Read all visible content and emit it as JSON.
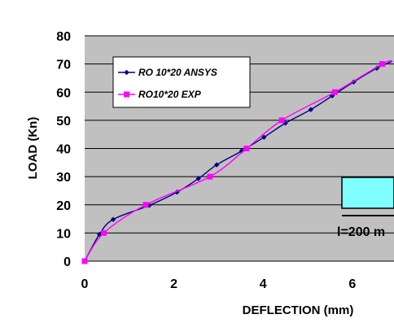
{
  "chart_data": {
    "type": "line",
    "xlabel": "DEFLECTION (mm)",
    "ylabel": "LOAD (Kn)",
    "xlim": [
      0,
      6.9
    ],
    "ylim": [
      0,
      80
    ],
    "x_ticks": [
      "0",
      "2",
      "4",
      "6"
    ],
    "y_ticks": [
      "0",
      "10",
      "20",
      "30",
      "40",
      "50",
      "60",
      "70",
      "80"
    ],
    "grid": "horizontal",
    "background": "#c0c0c0",
    "legend_position": "top-left",
    "series": [
      {
        "name": "RO 10*20 ANSYS",
        "color": "#000080",
        "marker": "diamond",
        "x": [
          0,
          0.33,
          0.64,
          1.45,
          2.07,
          2.55,
          2.96,
          3.52,
          4.02,
          4.5,
          5.07,
          5.55,
          6.03,
          6.55,
          6.9
        ],
        "y": [
          0,
          9.5,
          14.8,
          19.8,
          24.5,
          29.3,
          34.2,
          39.1,
          44,
          49,
          53.8,
          58.7,
          63.6,
          68.5,
          71
        ]
      },
      {
        "name": "RO10*20 EXP",
        "color": "#ff00ff",
        "marker": "square",
        "x": [
          0,
          0.43,
          1.37,
          2.81,
          3.63,
          4.42,
          5.61,
          6.67,
          6.9
        ],
        "y": [
          0,
          10,
          20,
          30,
          40,
          50,
          60,
          70,
          71
        ]
      }
    ]
  },
  "inset": {
    "label": "l=200 m",
    "fill_color": "#80ffff"
  }
}
